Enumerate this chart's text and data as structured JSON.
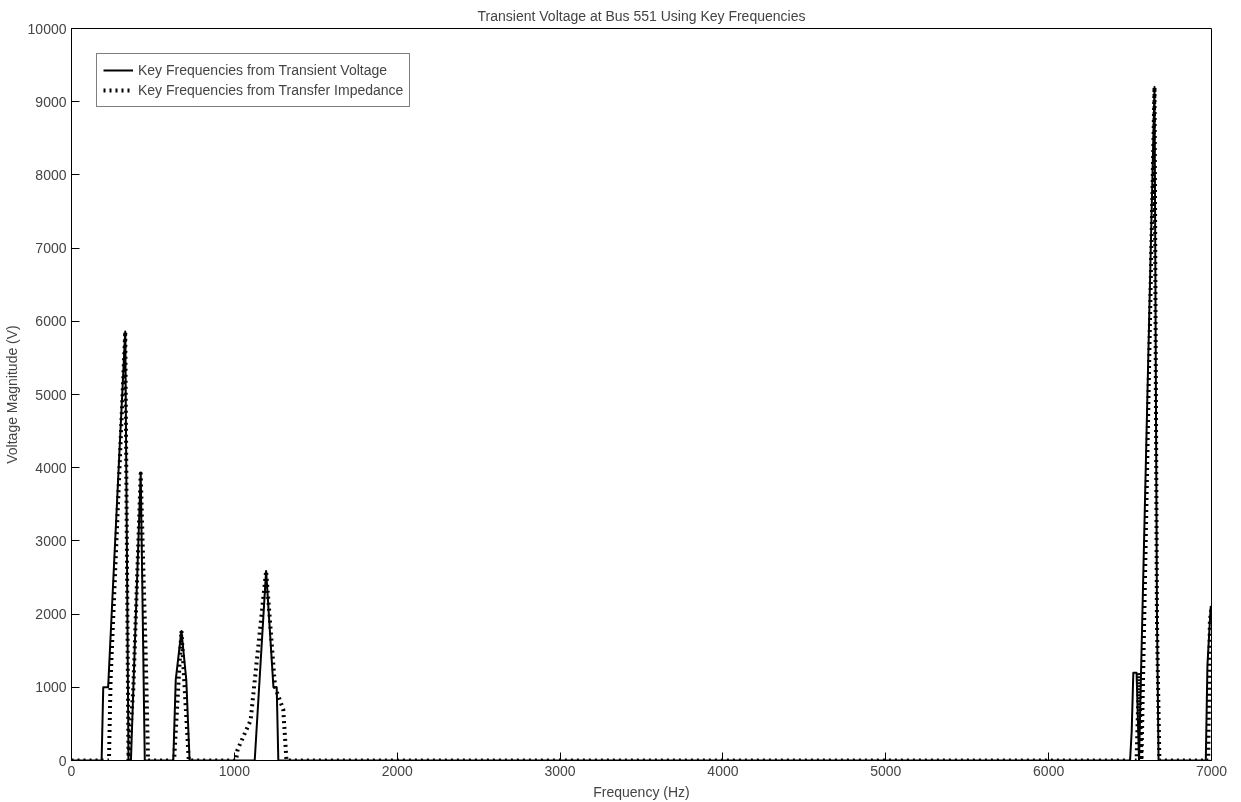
{
  "chart_data": {
    "type": "line",
    "title": "Transient Voltage at Bus 551 Using Key Frequencies",
    "xlabel": "Frequency (Hz)",
    "ylabel": "Voltage Magnitude (V)",
    "xlim": [
      0,
      7000
    ],
    "ylim": [
      0,
      10000
    ],
    "xticks": [
      0,
      1000,
      2000,
      3000,
      4000,
      5000,
      6000,
      7000
    ],
    "yticks": [
      0,
      1000,
      2000,
      3000,
      4000,
      5000,
      6000,
      7000,
      8000,
      9000,
      10000
    ],
    "grid": false,
    "legend": "top left",
    "marker": "none",
    "series": [
      {
        "name": "Key Frequencies from Transient Voltage",
        "color": "#000000",
        "line_style": "solid",
        "x": [
          0,
          185,
          195,
          225,
          330,
          350,
          365,
          380,
          425,
          450,
          480,
          625,
          640,
          675,
          705,
          725,
          1125,
          1195,
          1240,
          1260,
          1270,
          6500,
          6510,
          6520,
          6540,
          6555,
          6650,
          6665,
          6675,
          6965,
          6975,
          6995,
          7000
        ],
        "values": [
          0,
          0,
          1000,
          1000,
          5860,
          0,
          0,
          1000,
          3920,
          0,
          0,
          0,
          1100,
          1770,
          1100,
          0,
          0,
          2590,
          1000,
          1000,
          0,
          0,
          400,
          1200,
          1200,
          0,
          9200,
          2000,
          0,
          0,
          1300,
          2100,
          2100
        ]
      },
      {
        "name": "Key Frequencies from Transfer Impedance",
        "color": "#000000",
        "line_style": "dotted",
        "x": [
          0,
          230,
          240,
          330,
          350,
          380,
          425,
          455,
          470,
          630,
          675,
          720,
          1010,
          1020,
          1100,
          1195,
          1250,
          1300,
          1320,
          6540,
          6555,
          6570,
          6650,
          6665,
          6680,
          6980,
          6990,
          7000
        ],
        "values": [
          0,
          0,
          1100,
          5860,
          0,
          1000,
          3920,
          1500,
          0,
          0,
          1770,
          0,
          0,
          150,
          550,
          2590,
          1000,
          700,
          0,
          0,
          1200,
          0,
          9200,
          1900,
          0,
          0,
          1900,
          2100
        ]
      }
    ]
  }
}
